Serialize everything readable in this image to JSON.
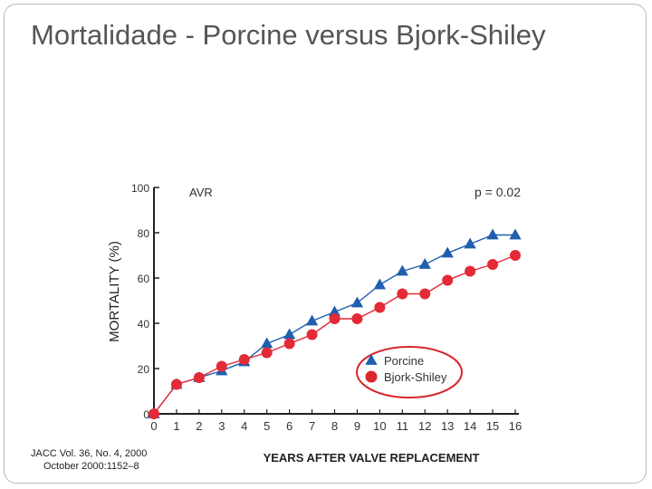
{
  "slide": {
    "title": "Mortalidade - Porcine versus Bjork-Shiley",
    "citation_line1": "JACC Vol. 36, No. 4, 2000",
    "citation_line2": "October 2000:1152–8"
  },
  "colors": {
    "porcine": "#1f5fae",
    "bjork": "#e32a36",
    "legend_circle": "#d9262b",
    "axis": "#222222"
  },
  "chart_data": {
    "type": "line",
    "title": "",
    "panel_label": "AVR",
    "annotation": "p = 0.02",
    "xlabel": "YEARS AFTER VALVE REPLACEMENT",
    "ylabel": "MORTALITY (%)",
    "x": [
      0,
      1,
      2,
      3,
      4,
      5,
      6,
      7,
      8,
      9,
      10,
      11,
      12,
      13,
      14,
      15,
      16
    ],
    "xlim": [
      0,
      16
    ],
    "ylim": [
      0,
      100
    ],
    "yticks": [
      0,
      20,
      40,
      60,
      80,
      100
    ],
    "xticks": [
      0,
      1,
      2,
      3,
      4,
      5,
      6,
      7,
      8,
      9,
      10,
      11,
      12,
      13,
      14,
      15,
      16
    ],
    "grid": false,
    "legend_position": "bottom-right",
    "series": [
      {
        "name": "Porcine",
        "marker": "triangle",
        "values": [
          0,
          13,
          16,
          19,
          23,
          31,
          35,
          41,
          45,
          49,
          57,
          63,
          66,
          71,
          75,
          79,
          79
        ]
      },
      {
        "name": "Bjork-Shiley",
        "marker": "circle",
        "values": [
          0,
          13,
          16,
          21,
          24,
          27,
          31,
          35,
          42,
          42,
          47,
          53,
          53,
          59,
          63,
          66,
          70
        ]
      }
    ]
  }
}
